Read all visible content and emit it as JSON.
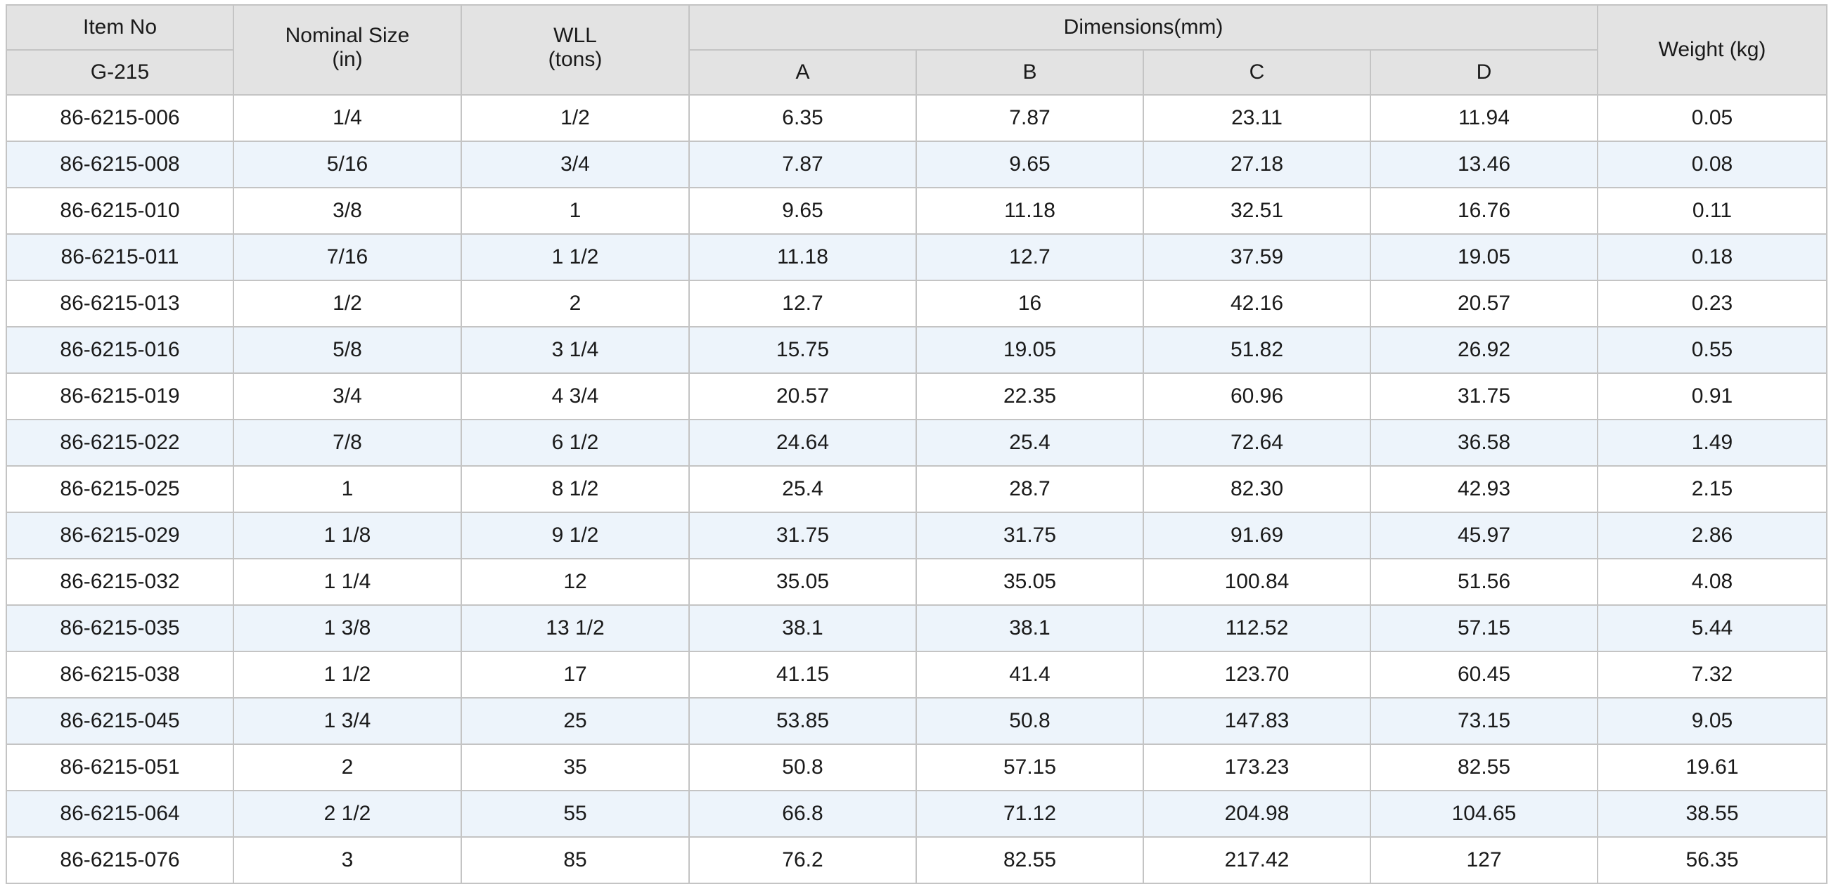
{
  "header": {
    "item_no": "Item No",
    "model": "G-215",
    "nominal_size": "Nominal Size",
    "nominal_unit": "(in)",
    "wll": "WLL",
    "wll_unit": "(tons)",
    "dimensions": "Dimensions(mm)",
    "dim_a": "A",
    "dim_b": "B",
    "dim_c": "C",
    "dim_d": "D",
    "weight": "Weight (kg)"
  },
  "colors": {
    "header_bg": "#e3e3e3",
    "stripe_bg": "#edf4fb",
    "border": "#c4c4c4"
  },
  "rows": [
    {
      "item": "86-6215-006",
      "size": "1/4",
      "wll": "1/2",
      "a": "6.35",
      "b": "7.87",
      "c": "23.11",
      "d": "11.94",
      "weight": "0.05"
    },
    {
      "item": "86-6215-008",
      "size": "5/16",
      "wll": "3/4",
      "a": "7.87",
      "b": "9.65",
      "c": "27.18",
      "d": "13.46",
      "weight": "0.08"
    },
    {
      "item": "86-6215-010",
      "size": "3/8",
      "wll": "1",
      "a": "9.65",
      "b": "11.18",
      "c": "32.51",
      "d": "16.76",
      "weight": "0.11"
    },
    {
      "item": "86-6215-011",
      "size": "7/16",
      "wll": "1 1/2",
      "a": "11.18",
      "b": "12.7",
      "c": "37.59",
      "d": "19.05",
      "weight": "0.18"
    },
    {
      "item": "86-6215-013",
      "size": "1/2",
      "wll": "2",
      "a": "12.7",
      "b": "16",
      "c": "42.16",
      "d": "20.57",
      "weight": "0.23"
    },
    {
      "item": "86-6215-016",
      "size": "5/8",
      "wll": "3 1/4",
      "a": "15.75",
      "b": "19.05",
      "c": "51.82",
      "d": "26.92",
      "weight": "0.55"
    },
    {
      "item": "86-6215-019",
      "size": "3/4",
      "wll": "4 3/4",
      "a": "20.57",
      "b": "22.35",
      "c": "60.96",
      "d": "31.75",
      "weight": "0.91"
    },
    {
      "item": "86-6215-022",
      "size": "7/8",
      "wll": "6 1/2",
      "a": "24.64",
      "b": "25.4",
      "c": "72.64",
      "d": "36.58",
      "weight": "1.49"
    },
    {
      "item": "86-6215-025",
      "size": "1",
      "wll": "8 1/2",
      "a": "25.4",
      "b": "28.7",
      "c": "82.30",
      "d": "42.93",
      "weight": "2.15"
    },
    {
      "item": "86-6215-029",
      "size": "1 1/8",
      "wll": "9 1/2",
      "a": "31.75",
      "b": "31.75",
      "c": "91.69",
      "d": "45.97",
      "weight": "2.86"
    },
    {
      "item": "86-6215-032",
      "size": "1 1/4",
      "wll": "12",
      "a": "35.05",
      "b": "35.05",
      "c": "100.84",
      "d": "51.56",
      "weight": "4.08"
    },
    {
      "item": "86-6215-035",
      "size": "1 3/8",
      "wll": "13 1/2",
      "a": "38.1",
      "b": "38.1",
      "c": "112.52",
      "d": "57.15",
      "weight": "5.44"
    },
    {
      "item": "86-6215-038",
      "size": "1 1/2",
      "wll": "17",
      "a": "41.15",
      "b": "41.4",
      "c": "123.70",
      "d": "60.45",
      "weight": "7.32"
    },
    {
      "item": "86-6215-045",
      "size": "1 3/4",
      "wll": "25",
      "a": "53.85",
      "b": "50.8",
      "c": "147.83",
      "d": "73.15",
      "weight": "9.05"
    },
    {
      "item": "86-6215-051",
      "size": "2",
      "wll": "35",
      "a": "50.8",
      "b": "57.15",
      "c": "173.23",
      "d": "82.55",
      "weight": "19.61"
    },
    {
      "item": "86-6215-064",
      "size": "2 1/2",
      "wll": "55",
      "a": "66.8",
      "b": "71.12",
      "c": "204.98",
      "d": "104.65",
      "weight": "38.55"
    },
    {
      "item": "86-6215-076",
      "size": "3",
      "wll": "85",
      "a": "76.2",
      "b": "82.55",
      "c": "217.42",
      "d": "127",
      "weight": "56.35"
    }
  ]
}
